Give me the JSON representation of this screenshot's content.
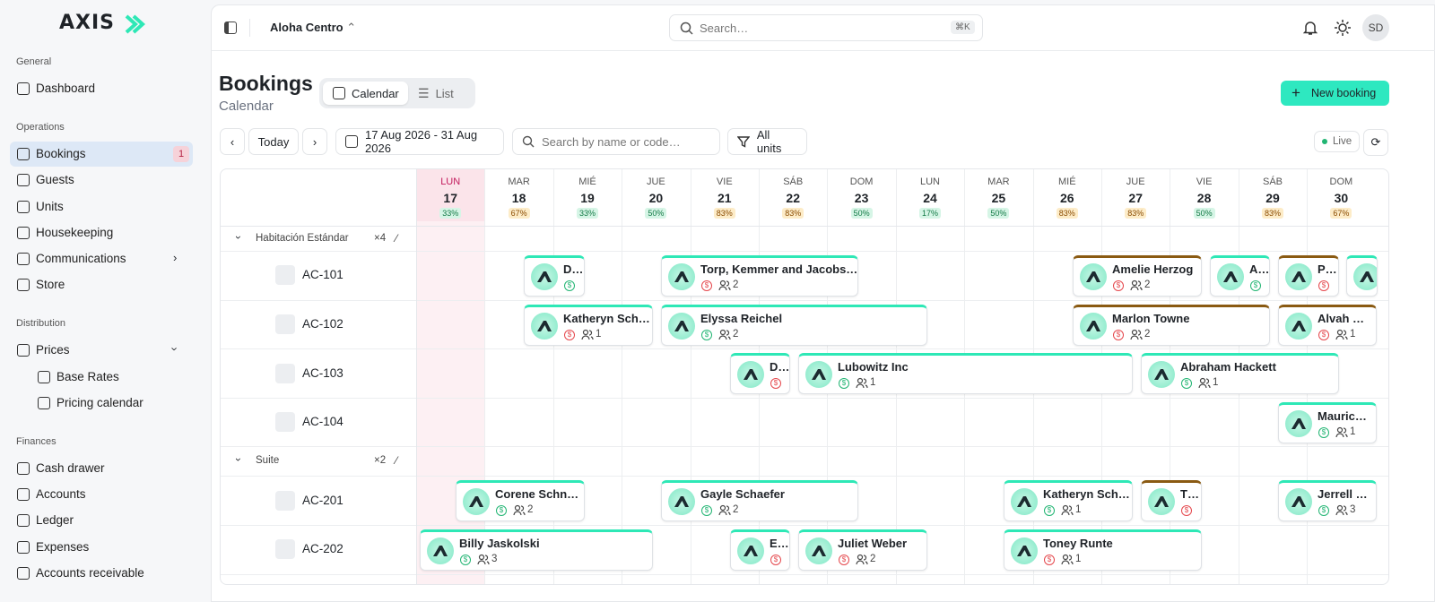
{
  "sidebar": {
    "logo": "AXIS",
    "sections": [
      {
        "title": "General",
        "items": [
          {
            "label": "Dashboard"
          }
        ]
      },
      {
        "title": "Operations",
        "items": [
          {
            "label": "Bookings",
            "badge": "1",
            "active": true
          },
          {
            "label": "Guests"
          },
          {
            "label": "Units"
          },
          {
            "label": "Housekeeping"
          },
          {
            "label": "Communications",
            "chevron": "right"
          },
          {
            "label": "Store"
          }
        ]
      },
      {
        "title": "Distribution",
        "items": [
          {
            "label": "Prices",
            "chevron": "down"
          },
          {
            "label": "Base Rates",
            "sub": true
          },
          {
            "label": "Pricing calendar",
            "sub": true
          }
        ]
      },
      {
        "title": "Finances",
        "items": [
          {
            "label": "Cash drawer"
          },
          {
            "label": "Accounts"
          },
          {
            "label": "Ledger"
          },
          {
            "label": "Expenses"
          },
          {
            "label": "Accounts receivable"
          }
        ]
      }
    ]
  },
  "topbar": {
    "property": "Aloha Centro",
    "search": "Search…",
    "shortcut": "⌘K",
    "avatar": "SD"
  },
  "header": {
    "title": "Bookings",
    "subtitle": "Calendar",
    "tabs": [
      "Calendar",
      "List"
    ],
    "new_booking": "New booking"
  },
  "toolbar": {
    "today": "Today",
    "date_range": "17 Aug 2026 - 31 Aug 2026",
    "search": "Search by name or code…",
    "filter": "All units",
    "live": "Live"
  },
  "calendar": {
    "today_index": 0,
    "days": [
      {
        "dow": "LUN",
        "day": "17",
        "occupancy": "33%"
      },
      {
        "dow": "MAR",
        "day": "18",
        "occupancy": "67%"
      },
      {
        "dow": "MIÉ",
        "day": "19",
        "occupancy": "33%"
      },
      {
        "dow": "JUE",
        "day": "20",
        "occupancy": "50%"
      },
      {
        "dow": "VIE",
        "day": "21",
        "occupancy": "83%"
      },
      {
        "dow": "SÁB",
        "day": "22",
        "occupancy": "83%"
      },
      {
        "dow": "DOM",
        "day": "23",
        "occupancy": "50%"
      },
      {
        "dow": "LUN",
        "day": "24",
        "occupancy": "17%"
      },
      {
        "dow": "MAR",
        "day": "25",
        "occupancy": "50%"
      },
      {
        "dow": "MIÉ",
        "day": "26",
        "occupancy": "83%"
      },
      {
        "dow": "JUE",
        "day": "27",
        "occupancy": "83%"
      },
      {
        "dow": "VIE",
        "day": "28",
        "occupancy": "50%"
      },
      {
        "dow": "SÁB",
        "day": "29",
        "occupancy": "83%"
      },
      {
        "dow": "DOM",
        "day": "30",
        "occupancy": "67%"
      }
    ],
    "groups": [
      {
        "name": "Habitación Estándar",
        "count": "×4",
        "units": [
          {
            "name": "AC-101",
            "bookings": [
              {
                "guest": "D…",
                "bar_color": "#2ee8b6",
                "pay_color": "#22b573"
              },
              {
                "guest": "Torp, Kemmer and Jacobs…",
                "guests": "2",
                "bar_color": "#2ee8b6",
                "pay_color": "#e5484d"
              },
              {
                "guest": "Amelie Herzog",
                "guests": "2",
                "bar_color": "#8a5a12",
                "pay_color": "#e5484d"
              },
              {
                "guest": "A…",
                "bar_color": "#2ee8b6",
                "pay_color": "#22b573"
              },
              {
                "guest": "P…",
                "bar_color": "#8a5a12",
                "pay_color": "#e5484d"
              },
              {
                "bar_color": "#2ee8b6"
              }
            ]
          },
          {
            "name": "AC-102",
            "bookings": [
              {
                "guest": "Katheryn Sch…",
                "guests": "1",
                "bar_color": "#2ee8b6",
                "pay_color": "#e5484d"
              },
              {
                "guest": "Elyssa Reichel",
                "guests": "2",
                "bar_color": "#2ee8b6",
                "pay_color": "#22b573"
              },
              {
                "guest": "Marlon Towne",
                "guests": "2",
                "bar_color": "#8a5a12",
                "pay_color": "#e5484d"
              },
              {
                "guest": "Alvah …",
                "guests": "1",
                "bar_color": "#8a5a12",
                "pay_color": "#e5484d"
              }
            ]
          },
          {
            "name": "AC-103",
            "bookings": [
              {
                "guest": "D…",
                "bar_color": "#2ee8b6",
                "pay_color": "#e5484d"
              },
              {
                "guest": "Lubowitz Inc",
                "guests": "1",
                "bar_color": "#2ee8b6",
                "pay_color": "#22b573"
              },
              {
                "guest": "Abraham Hackett",
                "guests": "1",
                "bar_color": "#2ee8b6",
                "pay_color": "#22b573"
              }
            ]
          },
          {
            "name": "AC-104",
            "bookings": [
              {
                "guest": "Mauric…",
                "guests": "1",
                "bar_color": "#2ee8b6",
                "pay_color": "#22b573"
              }
            ]
          }
        ]
      },
      {
        "name": "Suite",
        "count": "×2",
        "units": [
          {
            "name": "AC-201",
            "bookings": [
              {
                "guest": "Corene Schn…",
                "guests": "2",
                "bar_color": "#2ee8b6",
                "pay_color": "#22b573"
              },
              {
                "guest": "Gayle Schaefer",
                "guests": "2",
                "bar_color": "#2ee8b6",
                "pay_color": "#22b573"
              },
              {
                "guest": "Katheryn Sch…",
                "guests": "1",
                "bar_color": "#2ee8b6",
                "pay_color": "#22b573"
              },
              {
                "guest": "T…",
                "bar_color": "#8a5a12",
                "pay_color": "#e5484d"
              },
              {
                "guest": "Jerrell …",
                "guests": "3",
                "bar_color": "#2ee8b6",
                "pay_color": "#22b573"
              }
            ]
          },
          {
            "name": "AC-202",
            "bookings": [
              {
                "guest": "Billy Jaskolski",
                "guests": "3",
                "bar_color": "#2ee8b6",
                "pay_color": "#22b573"
              },
              {
                "guest": "E…",
                "bar_color": "#2ee8b6",
                "pay_color": "#e5484d"
              },
              {
                "guest": "Juliet Weber",
                "guests": "2",
                "bar_color": "#2ee8b6",
                "pay_color": "#e5484d"
              },
              {
                "guest": "Toney Runte",
                "guests": "1",
                "bar_color": "#2ee8b6",
                "pay_color": "#e5484d"
              }
            ]
          }
        ]
      }
    ]
  }
}
